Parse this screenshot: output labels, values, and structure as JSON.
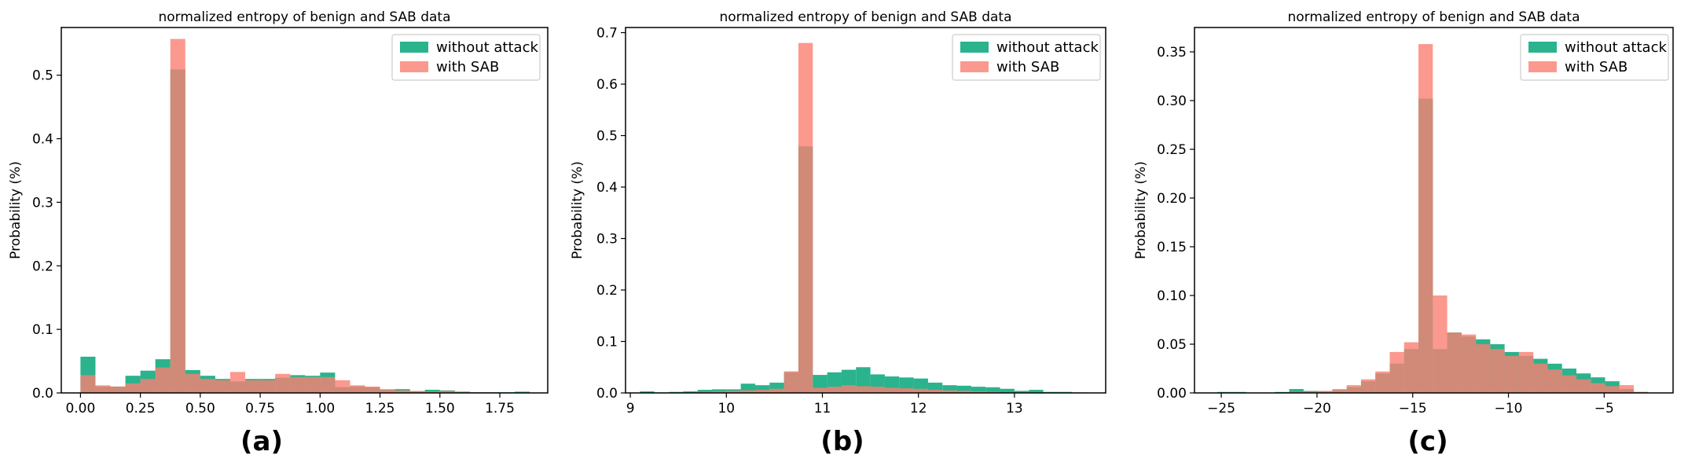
{
  "figure_labels": [
    "(a)",
    "(b)",
    "(c)"
  ],
  "colors": {
    "without_attack": "#2ab38c",
    "with_sab": "#fa8072",
    "axis": "#000000"
  },
  "chart_data": [
    {
      "type": "bar",
      "subtype": "histogram-overlay",
      "title": "normalized entropy of benign and SAB data",
      "xlabel": "",
      "ylabel": "Probability (%)",
      "xlim": [
        -0.08,
        1.95
      ],
      "ylim": [
        0,
        0.575
      ],
      "xticks": [
        0.0,
        0.25,
        0.5,
        0.75,
        1.0,
        1.25,
        1.5,
        1.75
      ],
      "xtick_labels": [
        "0.00",
        "0.25",
        "0.50",
        "0.75",
        "1.00",
        "1.25",
        "1.50",
        "1.75"
      ],
      "yticks": [
        0.0,
        0.1,
        0.2,
        0.3,
        0.4,
        0.5
      ],
      "ytick_labels": [
        "0.0",
        "0.1",
        "0.2",
        "0.3",
        "0.4",
        "0.5"
      ],
      "legend": {
        "position": "top-right",
        "entries": [
          "without attack",
          "with SAB"
        ]
      },
      "series": [
        {
          "name": "without attack",
          "bin_width": 0.0625,
          "bin_starts": [
            0.0,
            0.0625,
            0.125,
            0.1875,
            0.25,
            0.3125,
            0.375,
            0.4375,
            0.5,
            0.5625,
            0.625,
            0.6875,
            0.75,
            0.8125,
            0.875,
            0.9375,
            1.0,
            1.0625,
            1.125,
            1.1875,
            1.25,
            1.3125,
            1.375,
            1.4375,
            1.5,
            1.5625,
            1.625,
            1.6875,
            1.75,
            1.8125
          ],
          "values": [
            0.057,
            0.01,
            0.01,
            0.027,
            0.035,
            0.053,
            0.509,
            0.036,
            0.027,
            0.022,
            0.018,
            0.022,
            0.022,
            0.024,
            0.028,
            0.027,
            0.032,
            0.009,
            0.01,
            0.009,
            0.005,
            0.006,
            0.003,
            0.005,
            0.004,
            0.002,
            0.001,
            0.001,
            0.001,
            0.002
          ]
        },
        {
          "name": "with SAB",
          "bin_width": 0.0625,
          "bin_starts": [
            0.0,
            0.0625,
            0.125,
            0.1875,
            0.25,
            0.3125,
            0.375,
            0.4375,
            0.5,
            0.5625,
            0.625,
            0.6875,
            0.75,
            0.8125,
            0.875,
            0.9375,
            1.0,
            1.0625,
            1.125,
            1.1875,
            1.25,
            1.3125,
            1.375,
            1.4375,
            1.5,
            1.5625,
            1.625,
            1.6875,
            1.75,
            1.8125
          ],
          "values": [
            0.028,
            0.012,
            0.01,
            0.015,
            0.022,
            0.04,
            0.557,
            0.03,
            0.022,
            0.02,
            0.033,
            0.02,
            0.02,
            0.03,
            0.025,
            0.025,
            0.025,
            0.02,
            0.012,
            0.01,
            0.006,
            0.004,
            0.003,
            0.002,
            0.003,
            0.001,
            0.001,
            0.001,
            0.0,
            0.0
          ]
        }
      ]
    },
    {
      "type": "bar",
      "subtype": "histogram-overlay",
      "title": "normalized entropy of benign and SAB data",
      "xlabel": "",
      "ylabel": "Probability (%)",
      "xlim": [
        8.95,
        13.95
      ],
      "ylim": [
        0,
        0.71
      ],
      "xticks": [
        9,
        10,
        11,
        12,
        13
      ],
      "xtick_labels": [
        "9",
        "10",
        "11",
        "12",
        "13"
      ],
      "yticks": [
        0.0,
        0.1,
        0.2,
        0.3,
        0.4,
        0.5,
        0.6,
        0.7
      ],
      "ytick_labels": [
        "0.0",
        "0.1",
        "0.2",
        "0.3",
        "0.4",
        "0.5",
        "0.6",
        "0.7"
      ],
      "legend": {
        "position": "top-right",
        "entries": [
          "without attack",
          "with SAB"
        ]
      },
      "series": [
        {
          "name": "without attack",
          "bin_width": 0.15,
          "bin_starts": [
            9.1,
            9.25,
            9.4,
            9.55,
            9.7,
            9.85,
            10.0,
            10.15,
            10.3,
            10.45,
            10.6,
            10.75,
            10.9,
            11.05,
            11.2,
            11.35,
            11.5,
            11.65,
            11.8,
            11.95,
            12.1,
            12.25,
            12.4,
            12.55,
            12.7,
            12.85,
            13.0,
            13.15,
            13.3,
            13.45,
            13.6
          ],
          "values": [
            0.003,
            0.001,
            0.002,
            0.003,
            0.006,
            0.007,
            0.007,
            0.018,
            0.015,
            0.02,
            0.04,
            0.479,
            0.035,
            0.04,
            0.045,
            0.05,
            0.036,
            0.032,
            0.03,
            0.028,
            0.02,
            0.015,
            0.014,
            0.012,
            0.011,
            0.008,
            0.004,
            0.006,
            0.002,
            0.002,
            0.001
          ]
        },
        {
          "name": "with SAB",
          "bin_width": 0.15,
          "bin_starts": [
            9.1,
            9.25,
            9.4,
            9.55,
            9.7,
            9.85,
            10.0,
            10.15,
            10.3,
            10.45,
            10.6,
            10.75,
            10.9,
            11.05,
            11.2,
            11.35,
            11.5,
            11.65,
            11.8,
            11.95,
            12.1,
            12.25,
            12.4,
            12.55,
            12.7,
            12.85,
            13.0,
            13.15,
            13.3,
            13.45,
            13.6
          ],
          "values": [
            0.0,
            0.0,
            0.0,
            0.001,
            0.002,
            0.003,
            0.004,
            0.005,
            0.006,
            0.008,
            0.042,
            0.68,
            0.01,
            0.012,
            0.015,
            0.013,
            0.012,
            0.01,
            0.009,
            0.008,
            0.006,
            0.005,
            0.004,
            0.003,
            0.002,
            0.001,
            0.001,
            0.0,
            0.0,
            0.0,
            0.0
          ]
        }
      ]
    },
    {
      "type": "bar",
      "subtype": "histogram-overlay",
      "title": "normalized entropy of benign and SAB data",
      "xlabel": "",
      "ylabel": "Probability (%)",
      "xlim": [
        -26.4,
        -1.4
      ],
      "ylim": [
        0,
        0.375
      ],
      "xticks": [
        -25,
        -20,
        -15,
        -10,
        -5
      ],
      "xtick_labels": [
        "−25",
        "−20",
        "−15",
        "−10",
        "−5"
      ],
      "yticks": [
        0.0,
        0.05,
        0.1,
        0.15,
        0.2,
        0.25,
        0.3,
        0.35
      ],
      "ytick_labels": [
        "0.00",
        "0.05",
        "0.10",
        "0.15",
        "0.20",
        "0.25",
        "0.30",
        "0.35"
      ],
      "legend": {
        "position": "top-right",
        "entries": [
          "without attack",
          "with SAB"
        ]
      },
      "series": [
        {
          "name": "without attack",
          "bin_width": 0.75,
          "bin_starts": [
            -25.2,
            -24.45,
            -23.7,
            -22.95,
            -22.2,
            -21.45,
            -20.7,
            -19.95,
            -19.2,
            -18.45,
            -17.7,
            -16.95,
            -16.2,
            -15.45,
            -14.7,
            -13.95,
            -13.2,
            -12.45,
            -11.7,
            -10.95,
            -10.2,
            -9.45,
            -8.7,
            -7.95,
            -7.2,
            -6.45,
            -5.7,
            -4.95,
            -4.2,
            -3.45
          ],
          "values": [
            0.001,
            0.001,
            0.0,
            0.0,
            0.001,
            0.004,
            0.002,
            0.002,
            0.003,
            0.006,
            0.012,
            0.02,
            0.03,
            0.045,
            0.302,
            0.045,
            0.062,
            0.058,
            0.055,
            0.05,
            0.042,
            0.038,
            0.035,
            0.03,
            0.025,
            0.02,
            0.016,
            0.012,
            0.004,
            0.001
          ]
        },
        {
          "name": "with SAB",
          "bin_width": 0.75,
          "bin_starts": [
            -25.2,
            -24.45,
            -23.7,
            -22.95,
            -22.2,
            -21.45,
            -20.7,
            -19.95,
            -19.2,
            -18.45,
            -17.7,
            -16.95,
            -16.2,
            -15.45,
            -14.7,
            -13.95,
            -13.2,
            -12.45,
            -11.7,
            -10.95,
            -10.2,
            -9.45,
            -8.7,
            -7.95,
            -7.2,
            -6.45,
            -5.7,
            -4.95,
            -4.2,
            -3.45
          ],
          "values": [
            0.0,
            0.0,
            0.0,
            0.0,
            0.0,
            0.001,
            0.001,
            0.002,
            0.004,
            0.008,
            0.014,
            0.022,
            0.042,
            0.052,
            0.358,
            0.1,
            0.062,
            0.06,
            0.05,
            0.045,
            0.038,
            0.042,
            0.03,
            0.024,
            0.018,
            0.014,
            0.01,
            0.007,
            0.008,
            0.001
          ]
        }
      ]
    }
  ]
}
